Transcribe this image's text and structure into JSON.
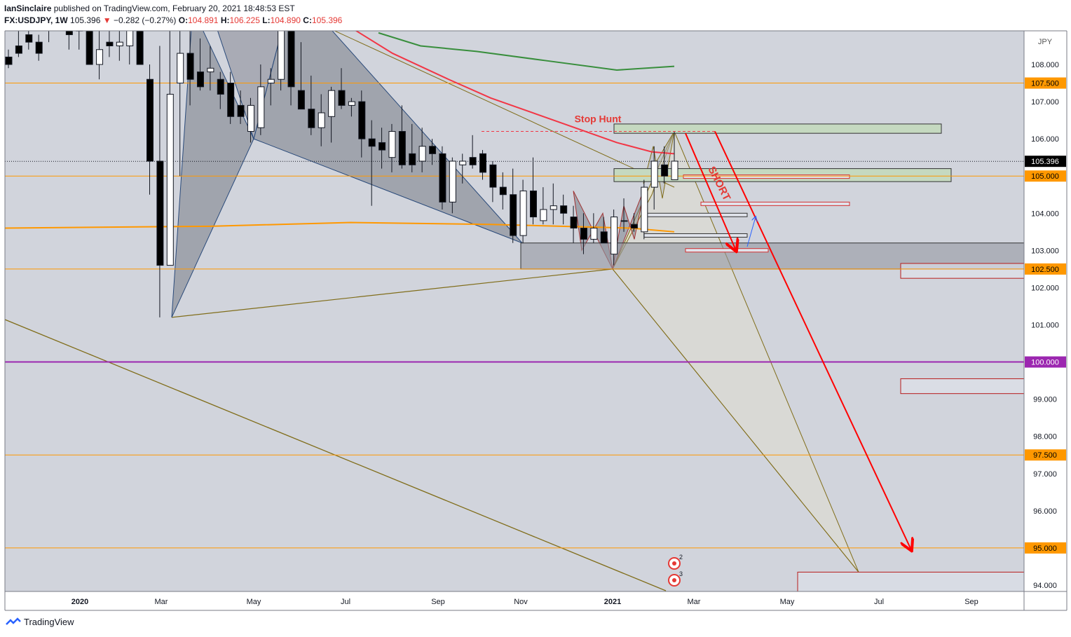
{
  "header": {
    "publisher": "IanSinclaire",
    "published_text": "published on TradingView.com, February 20, 2021 18:48:53 EST",
    "symbol": "FX:USDJPY, 1W",
    "last": "105.396",
    "change": "−0.282 (−0.27%)",
    "open_label": "O:",
    "open": "104.891",
    "high_label": "H:",
    "high": "106.225",
    "low_label": "L:",
    "low": "104.890",
    "close_label": "C:",
    "close": "105.396"
  },
  "footer": {
    "brand": "TradingView"
  },
  "chart_data": {
    "type": "candlestick",
    "currency_label": "JPY",
    "ylim": [
      93.8,
      109.0
    ],
    "y_ticks": [
      "108.000",
      "107.000",
      "106.000",
      "105.000",
      "104.000",
      "103.000",
      "102.000",
      "101.000",
      "100.000",
      "99.000",
      "98.000",
      "97.000",
      "96.000",
      "95.000",
      "94.000"
    ],
    "x_ticks": [
      "2020",
      "Mar",
      "May",
      "Jul",
      "Sep",
      "Nov",
      "2021",
      "Mar",
      "May",
      "Jul",
      "Sep"
    ],
    "price_badges": [
      {
        "value": 107.5,
        "label": "107.500",
        "color": "#ff9800"
      },
      {
        "value": 105.396,
        "label": "105.396",
        "color": "#000000"
      },
      {
        "value": 105.0,
        "label": "105.000",
        "color": "#ff9800"
      },
      {
        "value": 102.5,
        "label": "102.500",
        "color": "#ff9800"
      },
      {
        "value": 100.0,
        "label": "100.000",
        "color": "#9c27b0"
      },
      {
        "value": 97.5,
        "label": "97.500",
        "color": "#ff9800"
      },
      {
        "value": 95.0,
        "label": "95.000",
        "color": "#ff9800"
      }
    ],
    "horizontal_levels": [
      107.5,
      105.0,
      102.5,
      100.0,
      97.5,
      95.0
    ],
    "annotations": [
      "Stop Hunt",
      "SHORT"
    ],
    "event_badges": [
      "2",
      "3"
    ],
    "candles": [
      [
        108.2,
        108.4,
        107.9,
        108.0
      ],
      [
        108.5,
        108.9,
        108.2,
        108.3
      ],
      [
        108.8,
        109.0,
        108.4,
        108.6
      ],
      [
        108.6,
        108.8,
        108.1,
        108.3
      ],
      [
        109.0,
        109.2,
        108.6,
        109.2
      ],
      [
        109.3,
        109.5,
        109.0,
        109.1
      ],
      [
        109.5,
        109.6,
        108.4,
        108.8
      ],
      [
        108.9,
        109.5,
        108.4,
        109.4
      ],
      [
        109.5,
        110.0,
        108.0,
        108.0
      ],
      [
        108.0,
        109.2,
        107.6,
        108.4
      ],
      [
        108.6,
        109.0,
        108.2,
        108.5
      ],
      [
        108.5,
        109.2,
        108.1,
        108.6
      ],
      [
        108.5,
        109.4,
        108.0,
        109.0
      ],
      [
        109.5,
        112.0,
        108.0,
        108.0
      ],
      [
        107.6,
        108.0,
        104.5,
        105.4
      ],
      [
        105.4,
        108.5,
        101.2,
        102.6
      ],
      [
        102.6,
        111.5,
        102.6,
        107.2
      ],
      [
        107.5,
        110.8,
        105.0,
        108.3
      ],
      [
        108.3,
        109.0,
        106.9,
        107.6
      ],
      [
        107.8,
        108.7,
        107.3,
        107.4
      ],
      [
        107.8,
        108.5,
        107.3,
        107.9
      ],
      [
        107.6,
        107.8,
        106.8,
        107.2
      ],
      [
        107.5,
        107.8,
        106.4,
        106.6
      ],
      [
        106.9,
        107.3,
        106.4,
        106.6
      ],
      [
        106.2,
        107.1,
        105.9,
        106.9
      ],
      [
        106.3,
        108.0,
        106.1,
        107.4
      ],
      [
        107.5,
        107.9,
        106.9,
        107.6
      ],
      [
        107.6,
        109.8,
        107.3,
        109.7
      ],
      [
        109.8,
        109.9,
        106.9,
        107.4
      ],
      [
        107.3,
        108.6,
        106.9,
        106.8
      ],
      [
        106.8,
        107.7,
        106.1,
        106.3
      ],
      [
        106.3,
        107.2,
        105.8,
        106.7
      ],
      [
        106.6,
        107.4,
        105.9,
        107.3
      ],
      [
        107.3,
        107.9,
        106.8,
        106.9
      ],
      [
        106.9,
        107.1,
        106.6,
        107.0
      ],
      [
        107.0,
        107.3,
        105.5,
        106.0
      ],
      [
        106.0,
        106.5,
        104.2,
        105.8
      ],
      [
        105.9,
        106.3,
        105.2,
        105.7
      ],
      [
        105.5,
        106.4,
        105.1,
        106.2
      ],
      [
        106.2,
        106.9,
        105.2,
        105.3
      ],
      [
        105.6,
        106.4,
        105.1,
        105.3
      ],
      [
        105.4,
        106.3,
        105.1,
        105.8
      ],
      [
        105.8,
        106.0,
        105.3,
        105.6
      ],
      [
        105.6,
        105.8,
        104.1,
        104.3
      ],
      [
        104.3,
        105.5,
        104.0,
        105.4
      ],
      [
        105.3,
        105.6,
        104.8,
        105.4
      ],
      [
        105.5,
        106.1,
        105.2,
        105.3
      ],
      [
        105.6,
        105.7,
        104.9,
        105.1
      ],
      [
        105.3,
        105.4,
        104.3,
        104.7
      ],
      [
        104.7,
        105.1,
        104.1,
        104.5
      ],
      [
        104.5,
        105.2,
        103.2,
        103.4
      ],
      [
        103.4,
        104.9,
        103.2,
        104.6
      ],
      [
        104.6,
        105.5,
        103.7,
        103.9
      ],
      [
        103.8,
        104.7,
        103.7,
        104.1
      ],
      [
        104.1,
        104.8,
        103.7,
        104.2
      ],
      [
        104.2,
        104.5,
        103.7,
        104.0
      ],
      [
        103.9,
        104.2,
        103.2,
        103.6
      ],
      [
        103.6,
        104.0,
        102.9,
        103.3
      ],
      [
        103.3,
        104.0,
        103.2,
        103.6
      ],
      [
        103.5,
        103.9,
        103.2,
        103.2
      ],
      [
        102.9,
        104.1,
        102.6,
        103.9
      ],
      [
        103.8,
        104.4,
        103.5,
        103.8
      ],
      [
        103.7,
        104.0,
        103.5,
        103.6
      ],
      [
        103.5,
        104.9,
        103.3,
        104.7
      ],
      [
        104.7,
        105.8,
        104.1,
        105.4
      ],
      [
        105.3,
        105.8,
        104.8,
        105.0
      ],
      [
        104.9,
        106.2,
        104.9,
        105.4
      ]
    ]
  }
}
